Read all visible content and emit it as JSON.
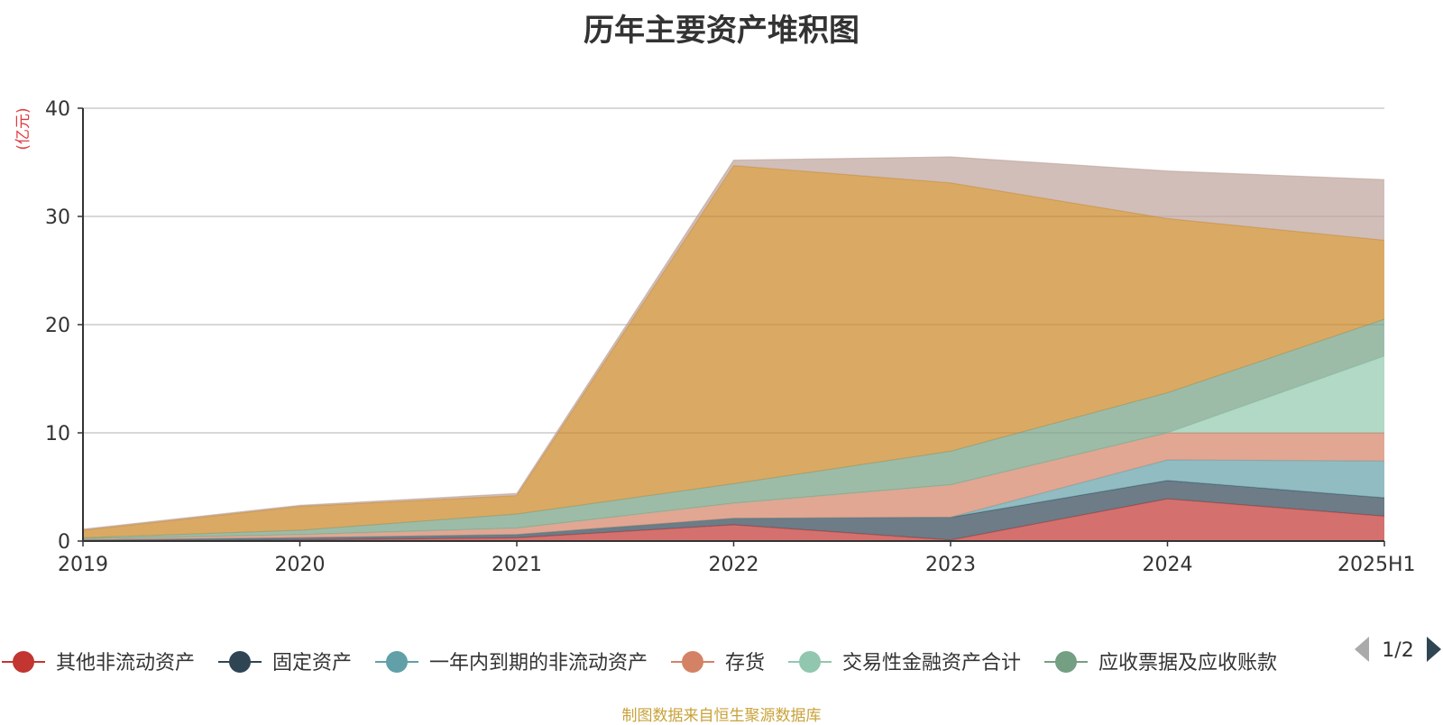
{
  "title": "历年主要资产堆积图",
  "source_note": "制图数据来自恒生聚源数据库",
  "legend_pager": "1/2",
  "chart_data": {
    "type": "area",
    "stacked": true,
    "title": "历年主要资产堆积图",
    "ylabel": "(亿元)",
    "xlabel": "",
    "categories": [
      "2019",
      "2020",
      "2021",
      "2022",
      "2023",
      "2024",
      "2025H1"
    ],
    "ylim": [
      0,
      40
    ],
    "yticks": [
      0,
      10,
      20,
      30,
      40
    ],
    "grid": true,
    "legend_position": "bottom",
    "series": [
      {
        "name": "其他非流动资产",
        "color": "#c23531",
        "values": [
          0.0,
          0.1,
          0.3,
          1.5,
          0.1,
          3.9,
          2.3
        ]
      },
      {
        "name": "固定资产",
        "color": "#2f4554",
        "values": [
          0.1,
          0.2,
          0.3,
          0.6,
          2.1,
          1.7,
          1.7
        ]
      },
      {
        "name": "一年内到期的非流动资产",
        "color": "#61a0a8",
        "values": [
          0.0,
          0.0,
          0.0,
          0.0,
          0.0,
          1.9,
          3.4
        ]
      },
      {
        "name": "存货",
        "color": "#d48265",
        "values": [
          0.1,
          0.3,
          0.6,
          1.4,
          3.0,
          2.5,
          2.6
        ]
      },
      {
        "name": "交易性金融资产合计",
        "color": "#91c7ae",
        "values": [
          0.0,
          0.0,
          0.0,
          0.0,
          0.0,
          0.0,
          7.1
        ]
      },
      {
        "name": "应收票据及应收账款",
        "color": "#749f83",
        "values": [
          0.1,
          0.4,
          1.3,
          1.8,
          3.1,
          3.7,
          3.4
        ]
      },
      {
        "name": "",
        "color": "#ca8622",
        "values": [
          0.7,
          2.2,
          1.7,
          29.4,
          24.8,
          16.1,
          7.3
        ]
      },
      {
        "name": "",
        "color": "#bda29a",
        "values": [
          0.1,
          0.1,
          0.2,
          0.5,
          2.4,
          4.4,
          5.6
        ]
      }
    ]
  }
}
